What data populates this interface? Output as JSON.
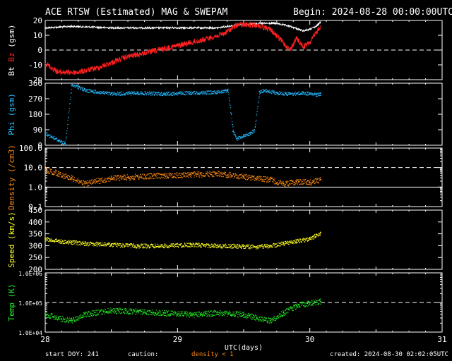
{
  "header": {
    "title": "ACE RTSW (Estimated) MAG & SWEPAM",
    "begin": "Begin: 2024-08-28 00:00:00UTC"
  },
  "footer": {
    "start_doy": "start DOY: 241",
    "caution_label": "caution:",
    "caution_text": "density < 1",
    "created": "created: 2024-08-30 02:02:05UTC"
  },
  "colors": {
    "background": "#000000",
    "axes": "#ffffff",
    "bt": "#ffffff",
    "bz": "#ff2020",
    "phi": "#22b8ff",
    "density": "#ff8a10",
    "speed": "#ffff20",
    "temp": "#22ee22"
  },
  "chart_data": [
    {
      "type": "line",
      "ylabel": "Bt  Bz  (gsm)",
      "ylabel_parts": [
        "Bt",
        "Bz",
        "(gsm)"
      ],
      "ylim": [
        -20,
        20
      ],
      "yticks": [
        -20,
        -10,
        0,
        10,
        20
      ],
      "dashed_lines": [
        0
      ],
      "xlim": [
        28,
        31
      ],
      "series": [
        {
          "name": "Bt",
          "x": [
            28.0,
            28.2,
            28.5,
            28.9,
            29.3,
            29.45,
            29.6,
            29.75,
            29.85,
            29.95,
            30.0,
            30.05,
            30.08
          ],
          "values": [
            15,
            16,
            15,
            15,
            15,
            17,
            18,
            18,
            16,
            13,
            14,
            16,
            19
          ]
        },
        {
          "name": "Bz",
          "x": [
            28.0,
            28.1,
            28.25,
            28.4,
            28.6,
            28.8,
            29.0,
            29.2,
            29.35,
            29.45,
            29.6,
            29.7,
            29.8,
            29.85,
            29.9,
            29.95,
            30.0,
            30.05,
            30.08
          ],
          "values": [
            -9,
            -15,
            -15,
            -12,
            -5,
            -1,
            3,
            7,
            11,
            17,
            17,
            14,
            5,
            0,
            8,
            2,
            5,
            12,
            16
          ]
        }
      ]
    },
    {
      "type": "scatter",
      "ylabel": "Phi (gsm)",
      "ylim": [
        0,
        360
      ],
      "yticks": [
        0,
        90,
        180,
        270,
        360
      ],
      "xlim": [
        28,
        31
      ],
      "series": [
        {
          "name": "Phi",
          "x": [
            28.0,
            28.05,
            28.1,
            28.15,
            28.2,
            28.25,
            28.3,
            28.5,
            28.7,
            28.9,
            29.1,
            29.3,
            29.38,
            29.42,
            29.45,
            29.5,
            29.55,
            29.58,
            29.62,
            29.65,
            29.75,
            29.85,
            29.95,
            30.05,
            30.08
          ],
          "values": [
            70,
            50,
            30,
            10,
            350,
            340,
            320,
            300,
            305,
            300,
            305,
            310,
            320,
            80,
            40,
            60,
            70,
            90,
            310,
            320,
            305,
            300,
            305,
            295,
            300
          ]
        }
      ]
    },
    {
      "type": "scatter",
      "ylabel": "Density (/cm3)",
      "yscale": "log",
      "ylim": [
        0.1,
        100
      ],
      "yticks": [
        0.1,
        1.0,
        10.0,
        100.0
      ],
      "ytick_labels": [
        "0.1",
        "1.0",
        "10.0",
        "100.0"
      ],
      "dashed_lines": [
        10.0
      ],
      "solid_lines": [
        1.0
      ],
      "xlim": [
        28,
        31
      ],
      "series": [
        {
          "name": "Density",
          "x": [
            28.0,
            28.1,
            28.2,
            28.3,
            28.5,
            28.7,
            28.9,
            29.1,
            29.3,
            29.5,
            29.6,
            29.7,
            29.8,
            29.9,
            30.0,
            30.08
          ],
          "values": [
            8,
            5,
            3,
            1.5,
            3,
            3.5,
            4,
            4.5,
            5,
            3.5,
            3,
            2.5,
            1.5,
            2,
            1.8,
            2.5
          ]
        }
      ]
    },
    {
      "type": "scatter",
      "ylabel": "Speed (km/s)",
      "ylim": [
        200,
        450
      ],
      "yticks": [
        200,
        250,
        300,
        350,
        400,
        450
      ],
      "xlim": [
        28,
        31
      ],
      "series": [
        {
          "name": "Speed",
          "x": [
            28.0,
            28.1,
            28.2,
            28.3,
            28.5,
            28.7,
            28.9,
            29.1,
            29.3,
            29.5,
            29.6,
            29.7,
            29.8,
            29.9,
            30.0,
            30.05,
            30.08
          ],
          "values": [
            330,
            320,
            315,
            310,
            305,
            300,
            300,
            305,
            300,
            298,
            295,
            300,
            310,
            320,
            330,
            345,
            355
          ]
        }
      ]
    },
    {
      "type": "scatter",
      "ylabel": "Temp (K)",
      "yscale": "log",
      "ylim": [
        10000,
        1000000
      ],
      "yticks": [
        10000,
        100000,
        1000000
      ],
      "ytick_labels": [
        "1.0E+04",
        "1.0E+05",
        "1.0E+06"
      ],
      "dashed_lines": [
        100000
      ],
      "xlim": [
        28,
        31
      ],
      "xticks": [
        28,
        29,
        30,
        31
      ],
      "xlabel": "UTC(days)",
      "series": [
        {
          "name": "Temp",
          "x": [
            28.0,
            28.1,
            28.2,
            28.3,
            28.5,
            28.7,
            28.9,
            29.1,
            29.3,
            29.5,
            29.6,
            29.7,
            29.8,
            29.9,
            30.0,
            30.08
          ],
          "values": [
            40000,
            30000,
            25000,
            40000,
            55000,
            50000,
            45000,
            40000,
            45000,
            40000,
            30000,
            25000,
            45000,
            80000,
            100000,
            110000
          ]
        }
      ]
    }
  ]
}
